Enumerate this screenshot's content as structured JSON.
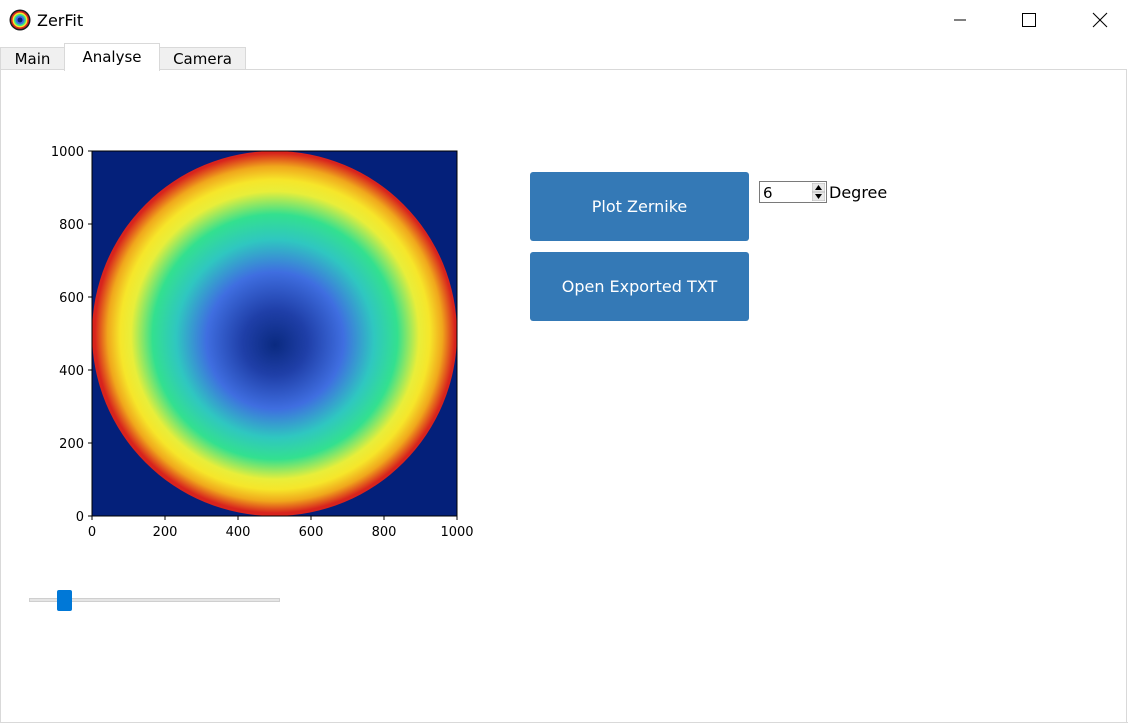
{
  "window": {
    "title": "ZerFit",
    "icon": "app-logo-icon",
    "controls": [
      "minimize-icon",
      "maximize-icon",
      "close-icon"
    ]
  },
  "tabs": [
    {
      "label": "Main",
      "active": false
    },
    {
      "label": "Analyse",
      "active": true
    },
    {
      "label": "Camera",
      "active": false
    }
  ],
  "chart_data": {
    "type": "heatmap",
    "title": "",
    "xlabel": "",
    "ylabel": "",
    "xlim": [
      0,
      1000
    ],
    "ylim": [
      0,
      1000
    ],
    "x_ticks": [
      0,
      200,
      400,
      600,
      800,
      1000
    ],
    "y_ticks": [
      0,
      200,
      400,
      600,
      800,
      1000
    ],
    "colormap": "jet",
    "pattern": "radial (defocus-like) Zernike surface inside a circular pupil",
    "pupil_center": [
      500,
      500
    ],
    "pupil_radius": 500,
    "min_at_center_approx": [
      490,
      470
    ],
    "background_color": "#04207a",
    "colors": [
      "#00207f",
      "#1a36a8",
      "#3f6ee0",
      "#2fc7c0",
      "#33e08f",
      "#d8ea3a",
      "#f6e62a",
      "#f0a71c",
      "#d8231d"
    ],
    "grid": false,
    "legend": "none"
  },
  "buttons": {
    "plot_zernike": "Plot Zernike",
    "open_exported_txt": "Open Exported TXT"
  },
  "degree": {
    "value": "6",
    "label": "Degree"
  },
  "slider": {
    "value_fraction": 0.12
  }
}
